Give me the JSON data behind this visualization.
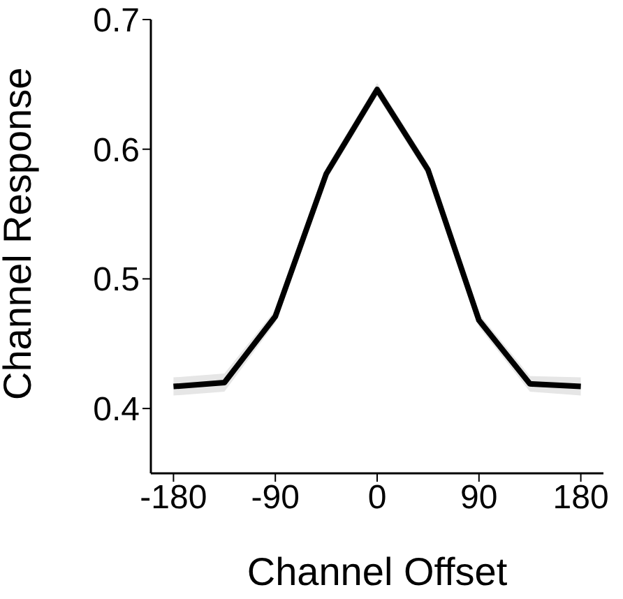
{
  "chart_data": {
    "type": "line",
    "xlabel": "Channel Offset",
    "ylabel": "Channel Response",
    "x": [
      -180,
      -135,
      -90,
      -45,
      0,
      45,
      90,
      135,
      180
    ],
    "series": [
      {
        "color": "#000000",
        "values": [
          0.417,
          0.42,
          0.471,
          0.581,
          0.646,
          0.584,
          0.468,
          0.419,
          0.417
        ],
        "lower": [
          0.41,
          0.413,
          0.466,
          0.576,
          0.641,
          0.579,
          0.463,
          0.413,
          0.41
        ],
        "upper": [
          0.424,
          0.427,
          0.476,
          0.586,
          0.651,
          0.589,
          0.473,
          0.425,
          0.424
        ]
      }
    ],
    "xlim": [
      -200,
      200
    ],
    "xticks": [
      -180,
      -90,
      0,
      90,
      180
    ],
    "ylim": [
      0.35,
      0.7
    ],
    "yticks": [
      0.4,
      0.5,
      0.6,
      0.7
    ],
    "grid": false,
    "marker": "none",
    "line_style": "solid"
  }
}
